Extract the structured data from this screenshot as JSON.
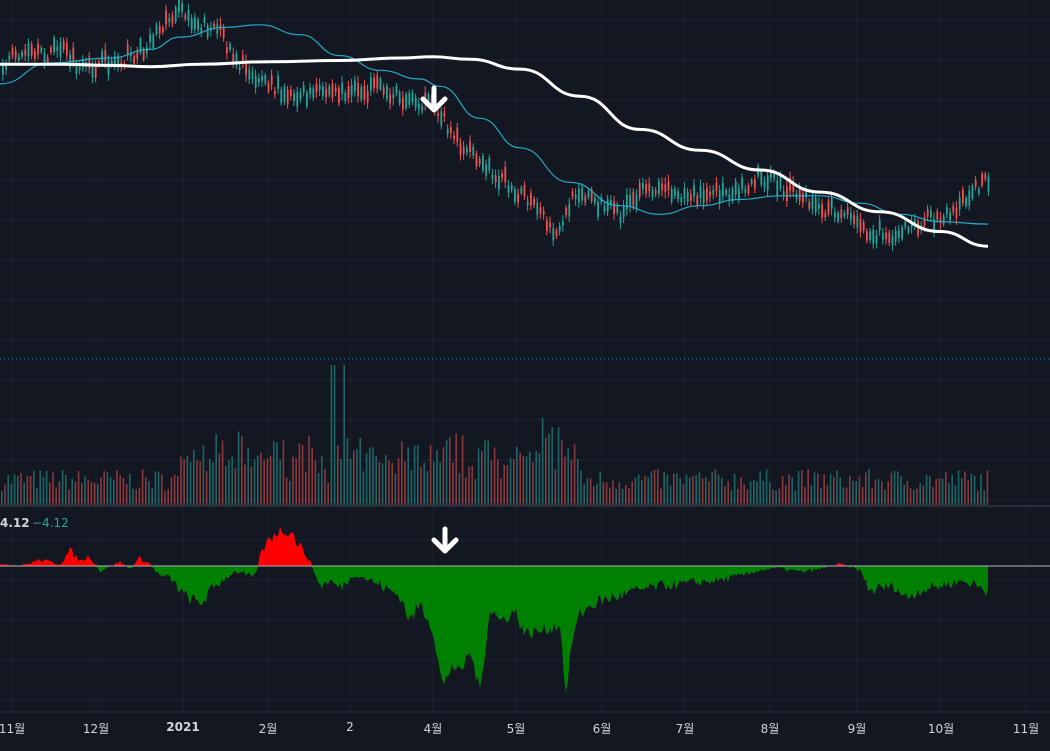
{
  "oscillator": {
    "value": "4.12",
    "change": "−4.12"
  },
  "x_axis_labels": [
    "11월",
    "12월",
    "2021",
    "2월",
    "2",
    "4월",
    "5월",
    "6월",
    "7월",
    "8월",
    "9월",
    "10월",
    "11월"
  ],
  "colors": {
    "background": "#131722",
    "grid": "#1e2230",
    "up": "#26a69a",
    "down": "#ef5350",
    "ma_short": "#26a9c9",
    "ma_long": "#ffffff",
    "osc_positive": "#ff0000",
    "osc_negative": "#008000",
    "annotation_arrow": "#ffffff"
  },
  "chart_data": [
    {
      "type": "candlestick",
      "title": "",
      "y_scale": "log",
      "price_path": [
        [
          0,
          0.4
        ],
        [
          20,
          0.31
        ],
        [
          40,
          0.34
        ],
        [
          60,
          0.26
        ],
        [
          80,
          0.46
        ],
        [
          100,
          0.4
        ],
        [
          120,
          0.36
        ],
        [
          140,
          0.3
        ],
        [
          160,
          0.1
        ],
        [
          175,
          -0.04
        ],
        [
          190,
          0.02
        ],
        [
          200,
          0.08
        ],
        [
          215,
          0.1
        ],
        [
          240,
          0.4
        ],
        [
          270,
          0.58
        ],
        [
          300,
          0.66
        ],
        [
          330,
          0.62
        ],
        [
          355,
          0.63
        ],
        [
          380,
          0.6
        ],
        [
          400,
          0.67
        ],
        [
          420,
          0.7
        ],
        [
          440,
          0.8
        ],
        [
          460,
          1.05
        ],
        [
          480,
          1.22
        ],
        [
          500,
          1.32
        ],
        [
          520,
          1.45
        ],
        [
          540,
          1.62
        ],
        [
          548,
          1.73
        ],
        [
          556,
          1.82
        ],
        [
          562,
          1.67
        ],
        [
          570,
          1.55
        ],
        [
          576,
          1.4
        ],
        [
          585,
          1.46
        ],
        [
          600,
          1.54
        ],
        [
          620,
          1.62
        ],
        [
          640,
          1.46
        ],
        [
          660,
          1.38
        ],
        [
          680,
          1.45
        ],
        [
          700,
          1.48
        ],
        [
          720,
          1.44
        ],
        [
          740,
          1.4
        ],
        [
          760,
          1.3
        ],
        [
          780,
          1.4
        ],
        [
          800,
          1.47
        ],
        [
          820,
          1.58
        ],
        [
          840,
          1.6
        ],
        [
          855,
          1.7
        ],
        [
          870,
          1.76
        ],
        [
          890,
          1.78
        ],
        [
          910,
          1.72
        ],
        [
          930,
          1.66
        ],
        [
          950,
          1.62
        ],
        [
          962,
          1.5
        ],
        [
          975,
          1.4
        ],
        [
          988,
          1.36
        ]
      ],
      "moving_averages": [
        {
          "name": "",
          "color": "#26a9c9",
          "path": [
            [
              0,
              0.56
            ],
            [
              50,
              0.39
            ],
            [
              110,
              0.35
            ],
            [
              150,
              0.28
            ],
            [
              180,
              0.18
            ],
            [
              225,
              0.1
            ],
            [
              260,
              0.08
            ],
            [
              300,
              0.16
            ],
            [
              340,
              0.33
            ],
            [
              380,
              0.45
            ],
            [
              420,
              0.52
            ],
            [
              440,
              0.58
            ],
            [
              480,
              0.84
            ],
            [
              520,
              1.08
            ],
            [
              570,
              1.36
            ],
            [
              620,
              1.55
            ],
            [
              660,
              1.62
            ],
            [
              700,
              1.55
            ],
            [
              740,
              1.5
            ],
            [
              780,
              1.47
            ],
            [
              820,
              1.47
            ],
            [
              860,
              1.53
            ],
            [
              900,
              1.62
            ],
            [
              940,
              1.68
            ],
            [
              988,
              1.7
            ]
          ]
        },
        {
          "name": "",
          "color": "#ffffff",
          "path": [
            [
              0,
              0.4
            ],
            [
              60,
              0.4
            ],
            [
              110,
              0.41
            ],
            [
              150,
              0.42
            ],
            [
              200,
              0.4
            ],
            [
              270,
              0.38
            ],
            [
              340,
              0.37
            ],
            [
              400,
              0.35
            ],
            [
              433,
              0.34
            ],
            [
              470,
              0.36
            ],
            [
              520,
              0.44
            ],
            [
              580,
              0.66
            ],
            [
              640,
              0.93
            ],
            [
              700,
              1.1
            ],
            [
              760,
              1.26
            ],
            [
              820,
              1.44
            ],
            [
              880,
              1.6
            ],
            [
              940,
              1.76
            ],
            [
              988,
              1.88
            ]
          ]
        }
      ],
      "volume_note": "",
      "annotations": [
        {
          "type": "arrow-down",
          "x": "4월",
          "target": "long moving average peak"
        }
      ]
    },
    {
      "type": "area",
      "title": "",
      "baseline": 0,
      "value": 4.12,
      "series": [
        {
          "name": "",
          "points": [
            [
              0,
              3
            ],
            [
              20,
              0
            ],
            [
              40,
              6
            ],
            [
              60,
              2
            ],
            [
              70,
              15
            ],
            [
              80,
              5
            ],
            [
              90,
              10
            ],
            [
              100,
              -5
            ],
            [
              110,
              0
            ],
            [
              120,
              4
            ],
            [
              130,
              -3
            ],
            [
              140,
              8
            ],
            [
              150,
              2
            ],
            [
              160,
              -10
            ],
            [
              170,
              -12
            ],
            [
              185,
              -30
            ],
            [
              200,
              -38
            ],
            [
              215,
              -20
            ],
            [
              235,
              -5
            ],
            [
              255,
              -12
            ],
            [
              260,
              10
            ],
            [
              270,
              28
            ],
            [
              278,
              35
            ],
            [
              290,
              36
            ],
            [
              300,
              20
            ],
            [
              310,
              5
            ],
            [
              320,
              -20
            ],
            [
              330,
              -15
            ],
            [
              340,
              -22
            ],
            [
              355,
              -8
            ],
            [
              370,
              -14
            ],
            [
              385,
              -22
            ],
            [
              400,
              -30
            ],
            [
              410,
              -55
            ],
            [
              420,
              -38
            ],
            [
              432,
              -60
            ],
            [
              443,
              -122
            ],
            [
              452,
              -98
            ],
            [
              460,
              -108
            ],
            [
              470,
              -85
            ],
            [
              480,
              -125
            ],
            [
              490,
              -42
            ],
            [
              500,
              -55
            ],
            [
              515,
              -45
            ],
            [
              525,
              -68
            ],
            [
              540,
              -65
            ],
            [
              550,
              -62
            ],
            [
              560,
              -58
            ],
            [
              566,
              -130
            ],
            [
              572,
              -75
            ],
            [
              580,
              -48
            ],
            [
              590,
              -40
            ],
            [
              600,
              -35
            ],
            [
              620,
              -30
            ],
            [
              640,
              -24
            ],
            [
              660,
              -20
            ],
            [
              680,
              -18
            ],
            [
              700,
              -16
            ],
            [
              720,
              -14
            ],
            [
              740,
              -10
            ],
            [
              760,
              -4
            ],
            [
              780,
              -2
            ],
            [
              800,
              -6
            ],
            [
              820,
              -3
            ],
            [
              840,
              2
            ],
            [
              860,
              -4
            ],
            [
              870,
              -25
            ],
            [
              880,
              -22
            ],
            [
              895,
              -20
            ],
            [
              905,
              -32
            ],
            [
              920,
              -24
            ],
            [
              940,
              -20
            ],
            [
              960,
              -15
            ],
            [
              975,
              -18
            ],
            [
              985,
              -25
            ],
            [
              988,
              -24
            ]
          ]
        }
      ]
    }
  ]
}
